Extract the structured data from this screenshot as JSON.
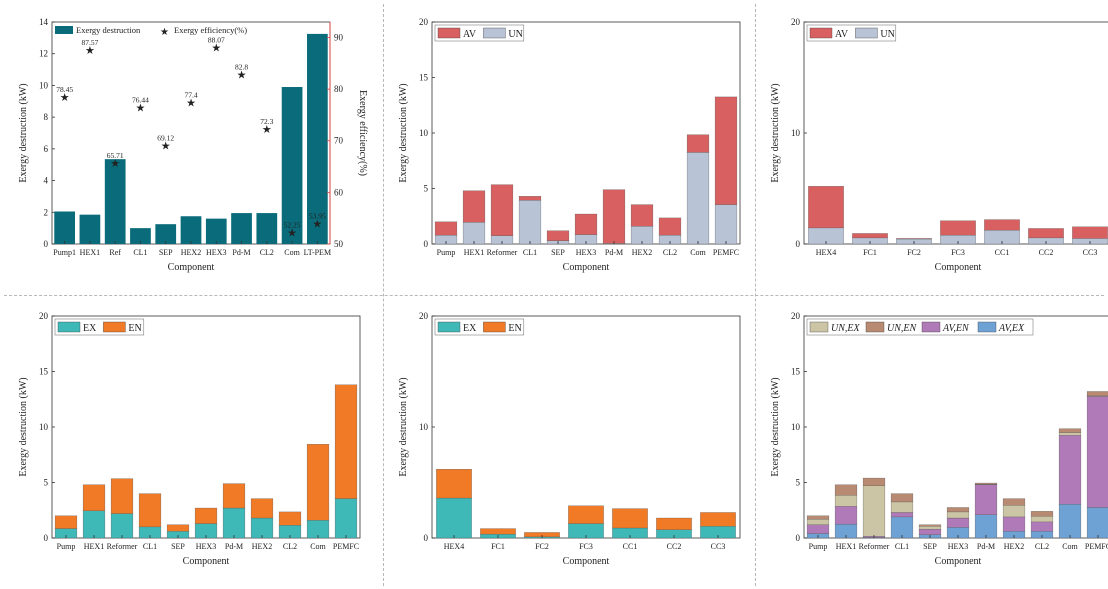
{
  "colors": {
    "teal": "#0a6b7a",
    "red_star": "#e8403c",
    "av": "#d96060",
    "un": "#b9c3d6",
    "ex": "#3fb9b7",
    "en": "#f07a26",
    "un_ex": "#cbc5a5",
    "un_en": "#b88a72",
    "av_en": "#b07ab8",
    "av_ex": "#6fa2d4"
  },
  "chart_data": [
    {
      "type": "bar",
      "categories": [
        "Pump1",
        "HEX1",
        "Ref",
        "CL1",
        "SEP",
        "HEX2",
        "HEX3",
        "Pd-M",
        "CL2",
        "Com",
        "LT-PEM"
      ],
      "series": [
        {
          "name": "Exergy destruction",
          "values": [
            2.05,
            1.85,
            5.35,
            1.0,
            1.25,
            1.75,
            1.6,
            1.95,
            1.95,
            9.9,
            13.25
          ]
        }
      ],
      "secondary_series": {
        "name": "Exergy efficiency(%)",
        "values": [
          78.45,
          87.57,
          65.71,
          76.44,
          69.12,
          77.4,
          88.07,
          82.8,
          72.3,
          52.25,
          53.95
        ]
      },
      "secondary_labels": [
        "78.45",
        "87.57",
        "65.71",
        "76.44",
        "69.12",
        "77.4",
        "88.07",
        "82.8",
        "72.3",
        "52.25",
        "53.95"
      ],
      "xlabel": "Component",
      "ylabel": "Exergy destruction (kW)",
      "y2label": "Exergy efficiency(%)",
      "ylim": [
        0,
        14
      ],
      "y2lim": [
        50,
        93
      ],
      "yticks": [
        "0",
        "2",
        "4",
        "6",
        "8",
        "10",
        "12",
        "14"
      ],
      "y2ticks": [
        "50",
        "60",
        "70",
        "80",
        "90"
      ],
      "legend": [
        "Exergy destruction",
        "Exergy efficiency(%)"
      ],
      "legend_position": "top-left",
      "grid": false
    },
    {
      "type": "bar",
      "stacked": true,
      "categories": [
        "Pump",
        "HEX1",
        "Reformer",
        "CL1",
        "SEP",
        "HEX3",
        "Pd-M",
        "HEX2",
        "CL2",
        "Com",
        "PEMFC"
      ],
      "series": [
        {
          "name": "UN",
          "values": [
            0.8,
            1.95,
            0.75,
            3.95,
            0.3,
            0.85,
            0.05,
            1.6,
            0.8,
            8.25,
            3.55
          ]
        },
        {
          "name": "AV",
          "values": [
            1.2,
            2.85,
            4.6,
            0.35,
            0.9,
            1.85,
            4.85,
            1.95,
            1.55,
            1.6,
            9.7
          ]
        }
      ],
      "xlabel": "Component",
      "ylabel": "Exergy destruction (kW)",
      "ylim": [
        0,
        20
      ],
      "yticks": [
        "0",
        "5",
        "10",
        "15",
        "20"
      ],
      "legend": [
        "AV",
        "UN"
      ],
      "legend_position": "top-left",
      "grid": false
    },
    {
      "type": "bar",
      "stacked": true,
      "categories": [
        "HEX4",
        "FC1",
        "FC2",
        "FC3",
        "CC1",
        "CC2",
        "CC3"
      ],
      "series": [
        {
          "name": "UN",
          "values": [
            1.45,
            0.55,
            0.45,
            0.8,
            1.25,
            0.55,
            0.5
          ]
        },
        {
          "name": "AV",
          "values": [
            3.75,
            0.4,
            0.05,
            1.3,
            0.95,
            0.85,
            1.05
          ]
        }
      ],
      "xlabel": "Component",
      "ylabel": "Exergy destruction (kW)",
      "ylim": [
        0,
        20
      ],
      "yticks": [
        "0",
        "10",
        "20"
      ],
      "legend": [
        "AV",
        "UN"
      ],
      "legend_position": "top-left",
      "grid": false
    },
    {
      "type": "bar",
      "stacked": true,
      "categories": [
        "Pump",
        "HEX1",
        "Reformer",
        "CL1",
        "SEP",
        "HEX3",
        "Pd-M",
        "HEX2",
        "CL2",
        "Com",
        "PEMFC"
      ],
      "series": [
        {
          "name": "EX",
          "values": [
            0.85,
            2.45,
            2.2,
            1.0,
            0.6,
            1.3,
            2.7,
            1.8,
            1.15,
            1.6,
            3.55
          ]
        },
        {
          "name": "EN",
          "values": [
            1.15,
            2.35,
            3.15,
            3.0,
            0.6,
            1.4,
            2.2,
            1.75,
            1.2,
            6.85,
            10.25
          ]
        }
      ],
      "xlabel": "Component",
      "ylabel": "Exergy destruction (kW)",
      "ylim": [
        0,
        20
      ],
      "yticks": [
        "0",
        "5",
        "10",
        "15",
        "20"
      ],
      "legend": [
        "EX",
        "EN"
      ],
      "legend_position": "top-left",
      "grid": false
    },
    {
      "type": "bar",
      "stacked": true,
      "categories": [
        "HEX4",
        "FC1",
        "FC2",
        "FC3",
        "CC1",
        "CC2",
        "CC3"
      ],
      "series": [
        {
          "name": "EX",
          "values": [
            3.6,
            0.35,
            0.1,
            1.3,
            0.9,
            0.75,
            1.05
          ]
        },
        {
          "name": "EN",
          "values": [
            2.6,
            0.5,
            0.4,
            1.6,
            1.75,
            1.05,
            1.25
          ]
        }
      ],
      "xlabel": "Component",
      "ylabel": "Exergy destruction (kW)",
      "ylim": [
        0,
        20
      ],
      "yticks": [
        "0",
        "10",
        "20"
      ],
      "legend": [
        "EX",
        "EN"
      ],
      "legend_position": "top-left",
      "grid": false
    },
    {
      "type": "bar",
      "stacked": true,
      "categories": [
        "Pump",
        "HEX1",
        "Reformer",
        "CL1",
        "SEP",
        "HEX3",
        "Pd-M",
        "HEX2",
        "CL2",
        "Com",
        "PEMFC"
      ],
      "series": [
        {
          "name": "AV,EX",
          "values": [
            0.4,
            1.25,
            0.05,
            1.9,
            0.3,
            0.95,
            2.1,
            0.6,
            0.6,
            3.05,
            2.75
          ]
        },
        {
          "name": "AV,EN",
          "values": [
            0.8,
            1.6,
            0.1,
            0.4,
            0.5,
            0.85,
            2.7,
            1.3,
            0.85,
            6.2,
            10.0
          ]
        },
        {
          "name": "UN,EX",
          "values": [
            0.5,
            1.0,
            4.55,
            0.95,
            0.25,
            0.55,
            0.05,
            1.05,
            0.5,
            0.25,
            0.05
          ]
        },
        {
          "name": "UN,EN",
          "values": [
            0.3,
            0.95,
            0.7,
            0.75,
            0.15,
            0.4,
            0.1,
            0.6,
            0.45,
            0.35,
            0.4
          ]
        }
      ],
      "xlabel": "Component",
      "ylabel": "Exergy destruction (kW)",
      "ylim": [
        0,
        20
      ],
      "yticks": [
        "0",
        "5",
        "10",
        "15",
        "20"
      ],
      "legend": [
        "UN,EX",
        "UN,EN",
        "AV,EN",
        "AV,EX"
      ],
      "legend_position": "top",
      "grid": false
    }
  ]
}
